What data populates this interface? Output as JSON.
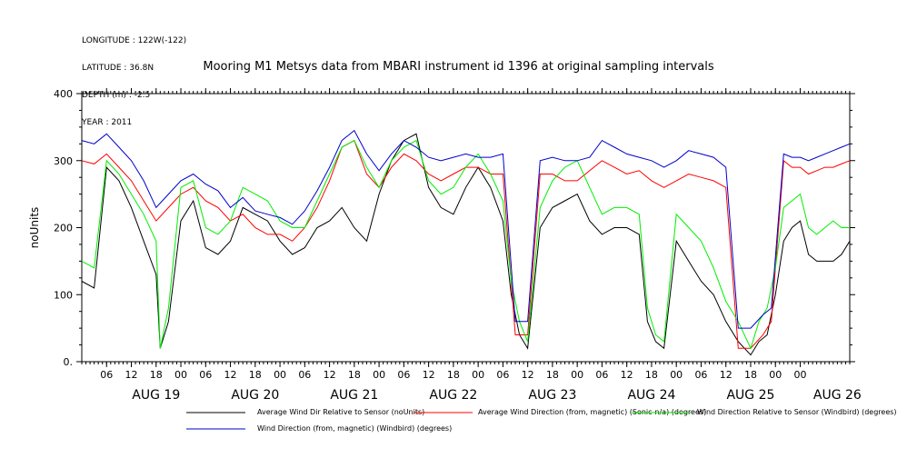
{
  "header": {
    "lines": [
      "LONGITUDE : 122W(-122)",
      "LATITUDE : 36.8N",
      "DEPTH (m) : -2.5",
      "YEAR : 2011"
    ]
  },
  "chart_data": {
    "type": "line",
    "title": "Mooring M1 Metsys data from MBARI instrument id 1396 at original sampling intervals",
    "ylabel": "noUnits",
    "ylim": [
      0,
      400
    ],
    "yticks": [
      0,
      100,
      200,
      300,
      400
    ],
    "xlim_hours": [
      0,
      186
    ],
    "hour_tick_labels": [
      "06",
      "12",
      "18",
      "00",
      "06",
      "12",
      "18",
      "00",
      "06",
      "12",
      "18",
      "00",
      "06",
      "12",
      "18",
      "00",
      "06",
      "12",
      "18",
      "00",
      "06",
      "12",
      "18",
      "00",
      "06",
      "12",
      "18",
      "00",
      "00"
    ],
    "day_labels": [
      "AUG 19",
      "AUG 20",
      "AUG 21",
      "AUG 22",
      "AUG 23",
      "AUG 24",
      "AUG 25",
      "AUG 26"
    ],
    "grid": false,
    "legend_position": "bottom",
    "series": [
      {
        "name": "Average Wind Dir Relative to Sensor (noUnits)",
        "color": "#000000",
        "values": [
          [
            0,
            120
          ],
          [
            3,
            110
          ],
          [
            6,
            290
          ],
          [
            9,
            270
          ],
          [
            12,
            230
          ],
          [
            15,
            180
          ],
          [
            18,
            130
          ],
          [
            19,
            20
          ],
          [
            21,
            60
          ],
          [
            24,
            210
          ],
          [
            27,
            240
          ],
          [
            30,
            170
          ],
          [
            33,
            160
          ],
          [
            36,
            180
          ],
          [
            39,
            230
          ],
          [
            42,
            220
          ],
          [
            45,
            210
          ],
          [
            48,
            180
          ],
          [
            51,
            160
          ],
          [
            54,
            170
          ],
          [
            57,
            200
          ],
          [
            60,
            210
          ],
          [
            63,
            230
          ],
          [
            66,
            200
          ],
          [
            69,
            180
          ],
          [
            72,
            250
          ],
          [
            75,
            300
          ],
          [
            78,
            330
          ],
          [
            81,
            340
          ],
          [
            84,
            260
          ],
          [
            87,
            230
          ],
          [
            90,
            220
          ],
          [
            93,
            260
          ],
          [
            96,
            290
          ],
          [
            99,
            260
          ],
          [
            102,
            210
          ],
          [
            104,
            100
          ],
          [
            106,
            40
          ],
          [
            108,
            20
          ],
          [
            111,
            200
          ],
          [
            114,
            230
          ],
          [
            117,
            240
          ],
          [
            120,
            250
          ],
          [
            123,
            210
          ],
          [
            126,
            190
          ],
          [
            129,
            200
          ],
          [
            132,
            200
          ],
          [
            135,
            190
          ],
          [
            137,
            60
          ],
          [
            139,
            30
          ],
          [
            141,
            20
          ],
          [
            144,
            180
          ],
          [
            147,
            150
          ],
          [
            150,
            120
          ],
          [
            153,
            100
          ],
          [
            156,
            60
          ],
          [
            159,
            30
          ],
          [
            162,
            10
          ],
          [
            164,
            30
          ],
          [
            166,
            40
          ],
          [
            168,
            100
          ],
          [
            170,
            180
          ],
          [
            172,
            200
          ],
          [
            174,
            210
          ],
          [
            176,
            160
          ],
          [
            178,
            150
          ],
          [
            180,
            150
          ],
          [
            182,
            150
          ],
          [
            184,
            160
          ],
          [
            186,
            180
          ]
        ]
      },
      {
        "name": "Average Wind Direction (from, magnetic) (Sonic-n/a) (degrees)",
        "color": "#ff0000",
        "values": [
          [
            0,
            300
          ],
          [
            3,
            295
          ],
          [
            6,
            310
          ],
          [
            9,
            290
          ],
          [
            12,
            270
          ],
          [
            15,
            240
          ],
          [
            18,
            210
          ],
          [
            21,
            230
          ],
          [
            24,
            250
          ],
          [
            27,
            260
          ],
          [
            30,
            240
          ],
          [
            33,
            230
          ],
          [
            36,
            210
          ],
          [
            39,
            220
          ],
          [
            42,
            200
          ],
          [
            45,
            190
          ],
          [
            48,
            190
          ],
          [
            51,
            180
          ],
          [
            54,
            200
          ],
          [
            57,
            230
          ],
          [
            60,
            270
          ],
          [
            63,
            320
          ],
          [
            66,
            330
          ],
          [
            69,
            280
          ],
          [
            72,
            260
          ],
          [
            75,
            290
          ],
          [
            78,
            310
          ],
          [
            81,
            300
          ],
          [
            84,
            280
          ],
          [
            87,
            270
          ],
          [
            90,
            280
          ],
          [
            93,
            290
          ],
          [
            96,
            290
          ],
          [
            99,
            280
          ],
          [
            102,
            280
          ],
          [
            105,
            40
          ],
          [
            108,
            40
          ],
          [
            111,
            280
          ],
          [
            114,
            280
          ],
          [
            117,
            270
          ],
          [
            120,
            270
          ],
          [
            123,
            285
          ],
          [
            126,
            300
          ],
          [
            129,
            290
          ],
          [
            132,
            280
          ],
          [
            135,
            285
          ],
          [
            138,
            270
          ],
          [
            141,
            260
          ],
          [
            144,
            270
          ],
          [
            147,
            280
          ],
          [
            150,
            275
          ],
          [
            153,
            270
          ],
          [
            156,
            260
          ],
          [
            159,
            20
          ],
          [
            162,
            20
          ],
          [
            165,
            40
          ],
          [
            167,
            60
          ],
          [
            170,
            300
          ],
          [
            172,
            290
          ],
          [
            174,
            290
          ],
          [
            176,
            280
          ],
          [
            178,
            285
          ],
          [
            180,
            290
          ],
          [
            182,
            290
          ],
          [
            184,
            295
          ],
          [
            186,
            300
          ]
        ]
      },
      {
        "name": "Wind Direction Relative to Sensor (Windbird) (degrees)",
        "color": "#00ee00",
        "values": [
          [
            0,
            150
          ],
          [
            3,
            140
          ],
          [
            6,
            300
          ],
          [
            9,
            280
          ],
          [
            12,
            250
          ],
          [
            15,
            220
          ],
          [
            18,
            180
          ],
          [
            19,
            20
          ],
          [
            21,
            80
          ],
          [
            24,
            260
          ],
          [
            27,
            270
          ],
          [
            30,
            200
          ],
          [
            33,
            190
          ],
          [
            36,
            210
          ],
          [
            39,
            260
          ],
          [
            42,
            250
          ],
          [
            45,
            240
          ],
          [
            48,
            210
          ],
          [
            51,
            200
          ],
          [
            54,
            200
          ],
          [
            57,
            240
          ],
          [
            60,
            280
          ],
          [
            63,
            320
          ],
          [
            66,
            330
          ],
          [
            69,
            290
          ],
          [
            72,
            260
          ],
          [
            75,
            300
          ],
          [
            78,
            320
          ],
          [
            81,
            330
          ],
          [
            84,
            270
          ],
          [
            87,
            250
          ],
          [
            90,
            260
          ],
          [
            93,
            290
          ],
          [
            96,
            310
          ],
          [
            99,
            280
          ],
          [
            102,
            240
          ],
          [
            104,
            120
          ],
          [
            106,
            60
          ],
          [
            108,
            30
          ],
          [
            111,
            230
          ],
          [
            114,
            270
          ],
          [
            117,
            290
          ],
          [
            120,
            300
          ],
          [
            123,
            260
          ],
          [
            126,
            220
          ],
          [
            129,
            230
          ],
          [
            132,
            230
          ],
          [
            135,
            220
          ],
          [
            137,
            80
          ],
          [
            139,
            40
          ],
          [
            141,
            30
          ],
          [
            144,
            220
          ],
          [
            147,
            200
          ],
          [
            150,
            180
          ],
          [
            153,
            140
          ],
          [
            156,
            90
          ],
          [
            159,
            60
          ],
          [
            162,
            20
          ],
          [
            164,
            60
          ],
          [
            166,
            80
          ],
          [
            168,
            140
          ],
          [
            170,
            230
          ],
          [
            172,
            240
          ],
          [
            174,
            250
          ],
          [
            176,
            200
          ],
          [
            178,
            190
          ],
          [
            180,
            200
          ],
          [
            182,
            210
          ],
          [
            184,
            200
          ],
          [
            186,
            200
          ]
        ]
      },
      {
        "name": "Wind Direction (from, magnetic) (Windbird) (degrees)",
        "color": "#0000cc",
        "values": [
          [
            0,
            330
          ],
          [
            3,
            325
          ],
          [
            6,
            340
          ],
          [
            9,
            320
          ],
          [
            12,
            300
          ],
          [
            15,
            270
          ],
          [
            18,
            230
          ],
          [
            21,
            250
          ],
          [
            24,
            270
          ],
          [
            27,
            280
          ],
          [
            30,
            265
          ],
          [
            33,
            255
          ],
          [
            36,
            230
          ],
          [
            39,
            245
          ],
          [
            42,
            225
          ],
          [
            45,
            220
          ],
          [
            48,
            215
          ],
          [
            51,
            205
          ],
          [
            54,
            225
          ],
          [
            57,
            255
          ],
          [
            60,
            290
          ],
          [
            63,
            330
          ],
          [
            66,
            345
          ],
          [
            69,
            310
          ],
          [
            72,
            285
          ],
          [
            75,
            310
          ],
          [
            78,
            330
          ],
          [
            81,
            320
          ],
          [
            84,
            305
          ],
          [
            87,
            300
          ],
          [
            90,
            305
          ],
          [
            93,
            310
          ],
          [
            96,
            305
          ],
          [
            99,
            305
          ],
          [
            102,
            310
          ],
          [
            105,
            60
          ],
          [
            108,
            60
          ],
          [
            111,
            300
          ],
          [
            114,
            305
          ],
          [
            117,
            300
          ],
          [
            120,
            300
          ],
          [
            123,
            305
          ],
          [
            126,
            330
          ],
          [
            129,
            320
          ],
          [
            132,
            310
          ],
          [
            135,
            305
          ],
          [
            138,
            300
          ],
          [
            141,
            290
          ],
          [
            144,
            300
          ],
          [
            147,
            315
          ],
          [
            150,
            310
          ],
          [
            153,
            305
          ],
          [
            156,
            290
          ],
          [
            159,
            50
          ],
          [
            162,
            50
          ],
          [
            165,
            70
          ],
          [
            167,
            80
          ],
          [
            170,
            310
          ],
          [
            172,
            305
          ],
          [
            174,
            305
          ],
          [
            176,
            300
          ],
          [
            178,
            305
          ],
          [
            180,
            310
          ],
          [
            182,
            315
          ],
          [
            184,
            320
          ],
          [
            186,
            325
          ]
        ]
      }
    ]
  }
}
